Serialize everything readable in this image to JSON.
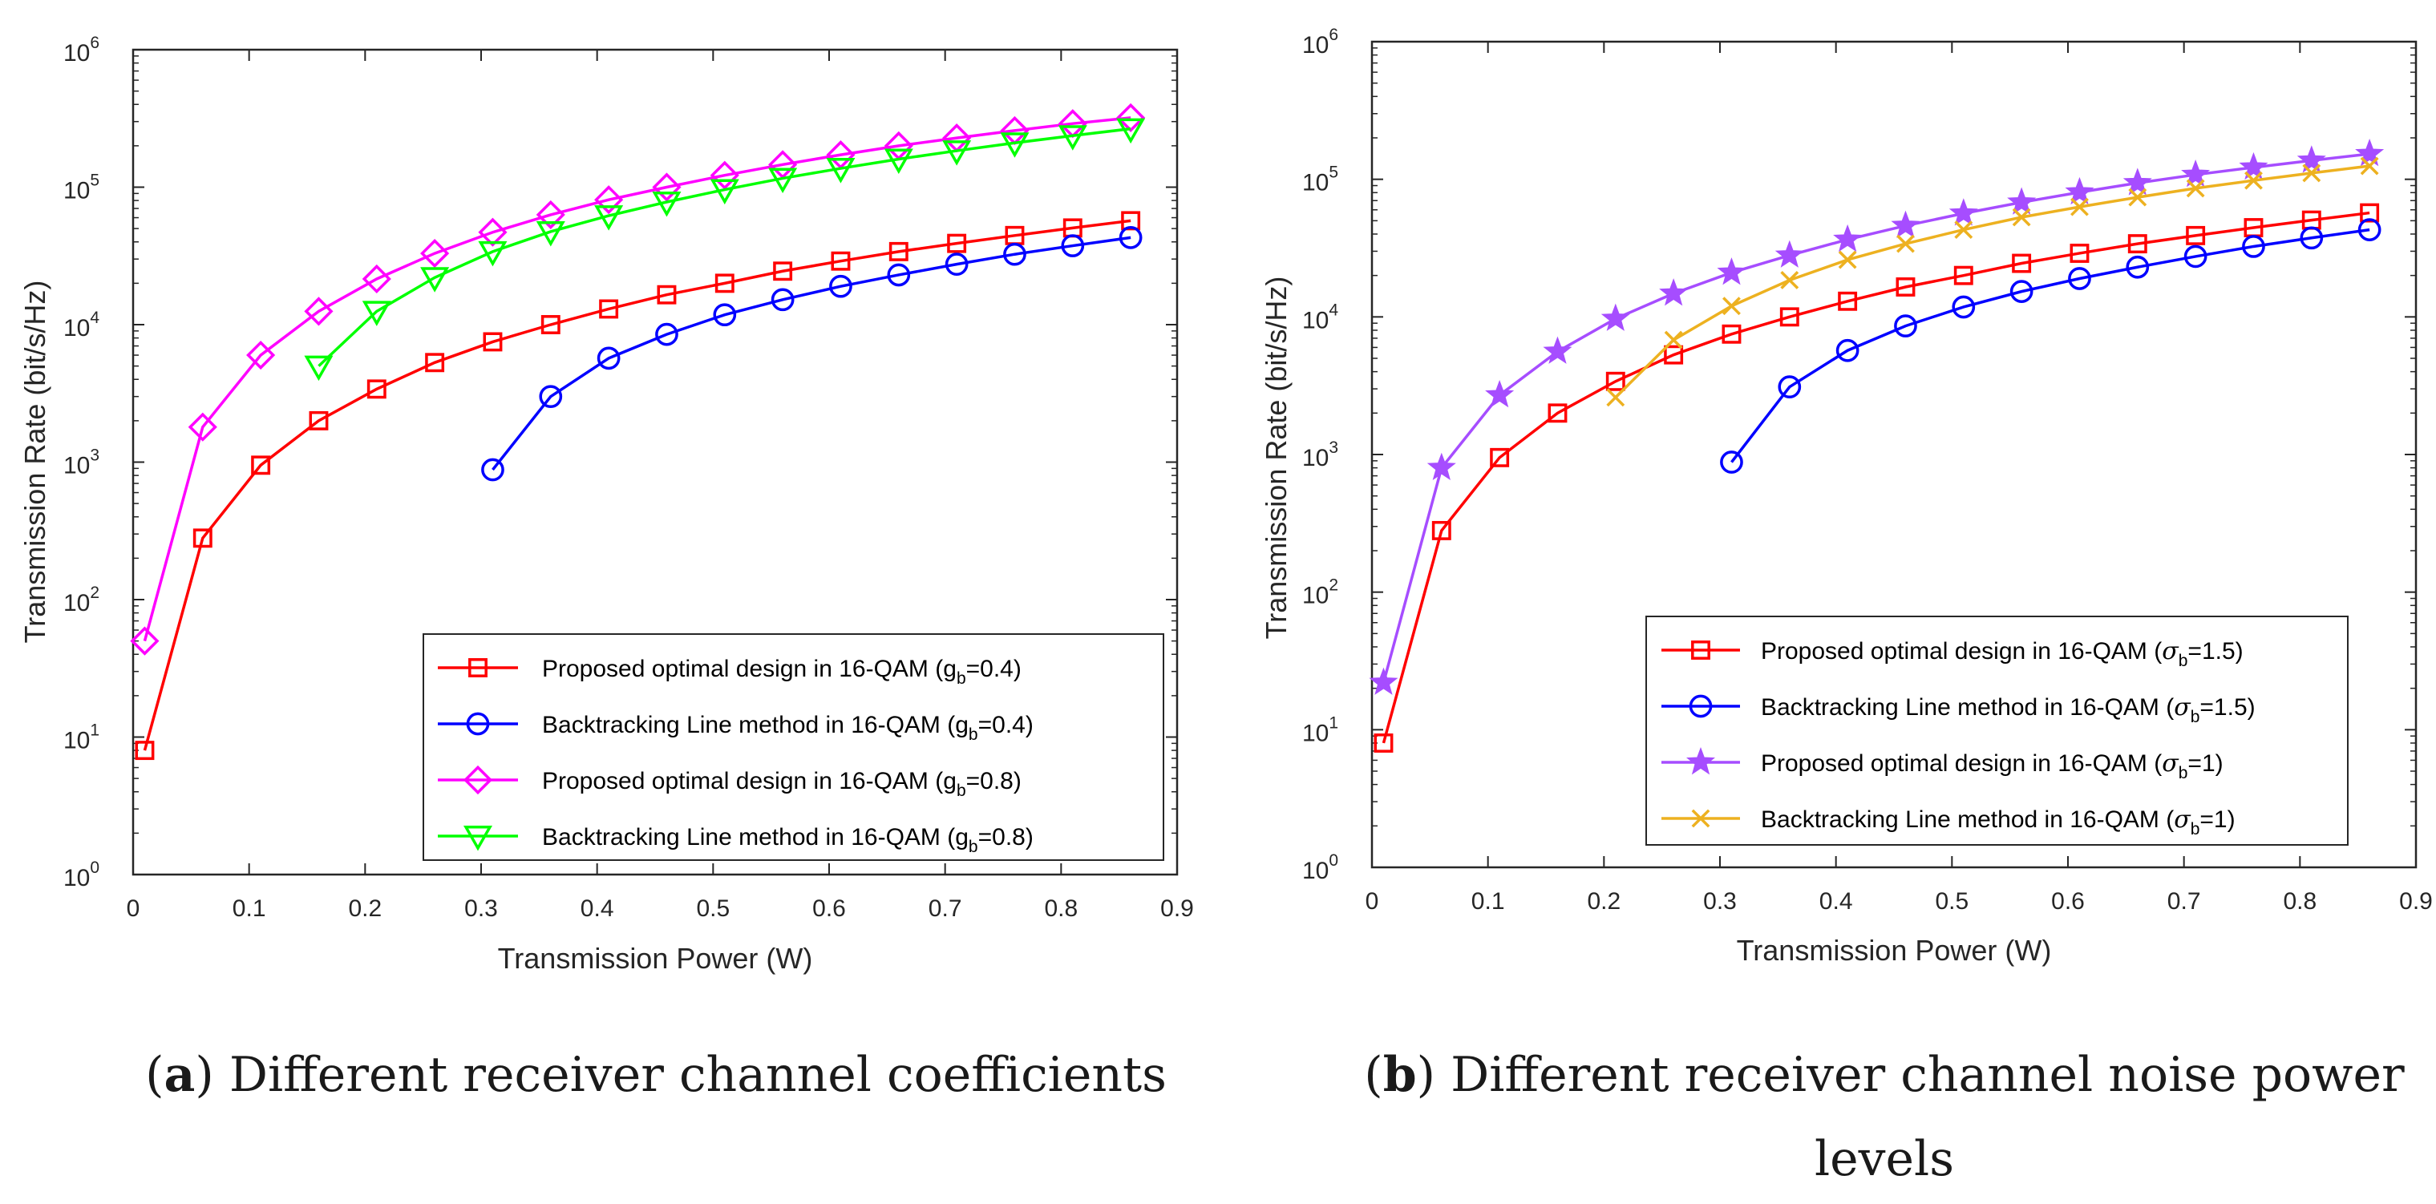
{
  "chart_data": [
    {
      "type": "line",
      "panel_label": "a",
      "caption": "Different receiver channel coefficients",
      "xlabel": "Transmission Power (W)",
      "ylabel": "Transmission Rate (bit/s/Hz)",
      "xlim": [
        0,
        0.9
      ],
      "ylim": [
        1,
        1000000
      ],
      "yscale": "log",
      "xticks": [
        "0",
        "0.1",
        "0.2",
        "0.3",
        "0.4",
        "0.5",
        "0.6",
        "0.7",
        "0.8",
        "0.9"
      ],
      "yticks": [
        {
          "base": "10",
          "exp": "0"
        },
        {
          "base": "10",
          "exp": "1"
        },
        {
          "base": "10",
          "exp": "2"
        },
        {
          "base": "10",
          "exp": "3"
        },
        {
          "base": "10",
          "exp": "4"
        },
        {
          "base": "10",
          "exp": "5"
        },
        {
          "base": "10",
          "exp": "6"
        }
      ],
      "grid": false,
      "legend_position": "bottom-right",
      "series": [
        {
          "name": "Proposed optimal design in 16-QAM (g",
          "sub": "b",
          "param": "=0.4)",
          "color": "#ff0000",
          "marker": "square",
          "x": [
            0.01,
            0.06,
            0.11,
            0.16,
            0.21,
            0.26,
            0.31,
            0.36,
            0.41,
            0.46,
            0.51,
            0.56,
            0.61,
            0.66,
            0.71,
            0.76,
            0.81,
            0.86
          ],
          "y": [
            8,
            280,
            950,
            2000,
            3400,
            5300,
            7500,
            10000,
            13000,
            16500,
            20000,
            24500,
            29000,
            34000,
            39000,
            44500,
            50500,
            57000
          ]
        },
        {
          "name": "Backtracking Line method in 16-QAM (g",
          "sub": "b",
          "param": "=0.4)",
          "color": "#0000ff",
          "marker": "circle",
          "x": [
            0.31,
            0.36,
            0.41,
            0.46,
            0.51,
            0.56,
            0.61,
            0.66,
            0.71,
            0.76,
            0.81,
            0.86
          ],
          "y": [
            880,
            3000,
            5700,
            8500,
            11800,
            15200,
            19000,
            23000,
            27500,
            32500,
            37500,
            43000
          ]
        },
        {
          "name": "Proposed optimal design in 16-QAM (g",
          "sub": "b",
          "param": "=0.8)",
          "color": "#ff00ff",
          "marker": "diamond",
          "x": [
            0.01,
            0.06,
            0.11,
            0.16,
            0.21,
            0.26,
            0.31,
            0.36,
            0.41,
            0.46,
            0.51,
            0.56,
            0.61,
            0.66,
            0.71,
            0.76,
            0.81,
            0.86
          ],
          "y": [
            50,
            1800,
            6000,
            12500,
            21500,
            33000,
            47000,
            63000,
            81000,
            100000,
            122000,
            146000,
            172000,
            200000,
            228000,
            258000,
            290000,
            320000
          ]
        },
        {
          "name": "Backtracking Line method in 16-QAM (g",
          "sub": "b",
          "param": "=0.8)",
          "color": "#00ff00",
          "marker": "triangle-down",
          "x": [
            0.16,
            0.21,
            0.26,
            0.31,
            0.36,
            0.41,
            0.46,
            0.51,
            0.56,
            0.61,
            0.66,
            0.71,
            0.76,
            0.81,
            0.86
          ],
          "y": [
            5000,
            12500,
            22000,
            34000,
            47500,
            62000,
            78000,
            96000,
            116000,
            137000,
            160000,
            184000,
            210000,
            237000,
            266000
          ]
        }
      ]
    },
    {
      "type": "line",
      "panel_label": "b",
      "caption": "Different receiver channel noise power levels",
      "xlabel": "Transmission Power (W)",
      "ylabel": "Transmission Rate (bit/s/Hz)",
      "xlim": [
        0,
        0.9
      ],
      "ylim": [
        1,
        1000000
      ],
      "yscale": "log",
      "xticks": [
        "0",
        "0.1",
        "0.2",
        "0.3",
        "0.4",
        "0.5",
        "0.6",
        "0.7",
        "0.8",
        "0.9"
      ],
      "yticks": [
        {
          "base": "10",
          "exp": "0"
        },
        {
          "base": "10",
          "exp": "1"
        },
        {
          "base": "10",
          "exp": "2"
        },
        {
          "base": "10",
          "exp": "3"
        },
        {
          "base": "10",
          "exp": "4"
        },
        {
          "base": "10",
          "exp": "5"
        },
        {
          "base": "10",
          "exp": "6"
        }
      ],
      "grid": false,
      "legend_position": "bottom-right",
      "series": [
        {
          "name": "Proposed optimal design in 16-QAM (",
          "sym": "σ",
          "sub": "b",
          "param": "=1.5)",
          "color": "#ff0000",
          "marker": "square",
          "x": [
            0.01,
            0.06,
            0.11,
            0.16,
            0.21,
            0.26,
            0.31,
            0.36,
            0.41,
            0.46,
            0.51,
            0.56,
            0.61,
            0.66,
            0.71,
            0.76,
            0.81,
            0.86
          ],
          "y": [
            8,
            280,
            950,
            2000,
            3400,
            5300,
            7500,
            10000,
            13000,
            16500,
            20000,
            24500,
            29000,
            34000,
            39000,
            44500,
            50500,
            57000
          ]
        },
        {
          "name": "Backtracking Line method in 16-QAM (",
          "sym": "σ",
          "sub": "b",
          "param": "=1.5)",
          "color": "#0000ff",
          "marker": "circle",
          "x": [
            0.31,
            0.36,
            0.41,
            0.46,
            0.51,
            0.56,
            0.61,
            0.66,
            0.71,
            0.76,
            0.81,
            0.86
          ],
          "y": [
            880,
            3100,
            5700,
            8600,
            11800,
            15300,
            19000,
            23000,
            27500,
            32500,
            37500,
            43000
          ]
        },
        {
          "name": "Proposed optimal design in 16-QAM (",
          "sym": "σ",
          "sub": "b",
          "param": "=1)",
          "color": "#a64dff",
          "marker": "star",
          "x": [
            0.01,
            0.06,
            0.11,
            0.16,
            0.21,
            0.26,
            0.31,
            0.36,
            0.41,
            0.46,
            0.51,
            0.56,
            0.61,
            0.66,
            0.71,
            0.76,
            0.81,
            0.86
          ],
          "y": [
            22,
            800,
            2700,
            5600,
            9700,
            14800,
            21000,
            28000,
            36500,
            46000,
            56500,
            68000,
            80500,
            94000,
            108000,
            122000,
            137000,
            153000
          ]
        },
        {
          "name": "Backtracking Line method in 16-QAM (",
          "sym": "σ",
          "sub": "b",
          "param": "=1)",
          "color": "#edb120",
          "marker": "x",
          "x": [
            0.21,
            0.26,
            0.31,
            0.36,
            0.41,
            0.46,
            0.51,
            0.56,
            0.61,
            0.66,
            0.71,
            0.76,
            0.81,
            0.86
          ],
          "y": [
            2600,
            6800,
            12000,
            18500,
            26000,
            34000,
            43000,
            53000,
            63000,
            74000,
            86000,
            98000,
            111000,
            125000
          ]
        }
      ]
    }
  ]
}
